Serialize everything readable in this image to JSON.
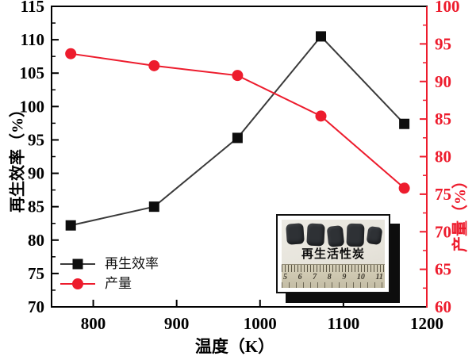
{
  "chart_data": {
    "type": "line",
    "title": "",
    "x": [
      773,
      873,
      973,
      1073,
      1173
    ],
    "series": [
      {
        "key": "efficiency",
        "name": "再生效率",
        "axis": "left",
        "values": [
          82.2,
          85.0,
          95.3,
          110.5,
          97.4
        ],
        "color": "#3a3a3a",
        "marker": "square",
        "marker_color": "#0d0d0d"
      },
      {
        "key": "yield",
        "name": "产量",
        "axis": "right",
        "values": [
          93.7,
          92.1,
          90.8,
          85.4,
          75.8
        ],
        "color": "#ed1c2d",
        "marker": "circle",
        "marker_color": "#ed1c2d"
      }
    ],
    "x_axis": {
      "title": "温度（K）",
      "range": [
        750,
        1200
      ],
      "ticks": [
        800,
        900,
        1000,
        1100,
        1200
      ],
      "color": "#000000"
    },
    "left_axis": {
      "title": "再生效率（%）",
      "range": [
        70,
        115
      ],
      "ticks": [
        70,
        75,
        80,
        85,
        90,
        95,
        100,
        105,
        110,
        115
      ],
      "minor_step": 2.5,
      "color": "#000000"
    },
    "right_axis": {
      "title": "产量（%）",
      "range": [
        60,
        100
      ],
      "ticks": [
        60,
        65,
        70,
        75,
        80,
        85,
        90,
        95,
        100
      ],
      "minor_step": 2.5,
      "color": "#ed1c2d"
    },
    "legend": {
      "position": "lower-left",
      "items": [
        {
          "label": "再生效率",
          "marker": "square"
        },
        {
          "label": "产量",
          "marker": "circle"
        }
      ]
    },
    "grid": false
  },
  "inset": {
    "label": "再生活性炭",
    "ruler_numbers": [
      "5",
      "6",
      "7",
      "8",
      "9",
      "10",
      "11"
    ]
  }
}
